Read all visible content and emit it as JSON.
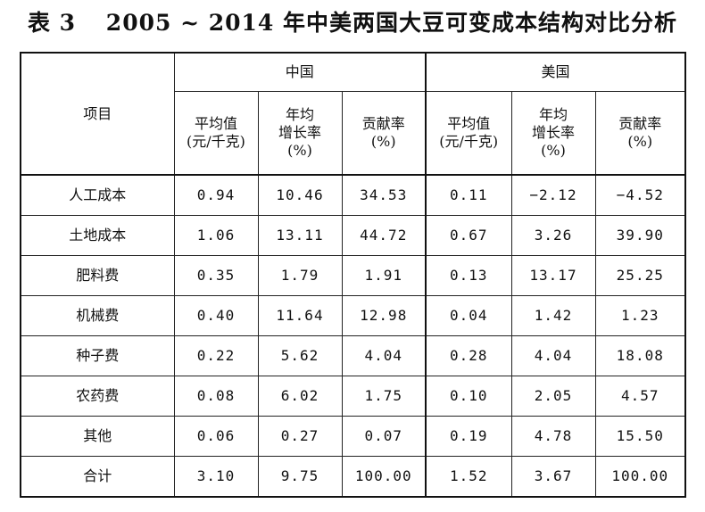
{
  "title": {
    "table_no": "表 3",
    "text": "2005 ~ 2014 年中美两国大豆可变成本结构对比分析"
  },
  "header": {
    "item": "项目",
    "groups": [
      "中国",
      "美国"
    ],
    "sub": [
      {
        "line1": "平均值",
        "line2": "(元/千克)",
        "line3": ""
      },
      {
        "line1": "年均",
        "line2": "增长率",
        "line3": "(%)"
      },
      {
        "line1": "贡献率",
        "line2": "(%)",
        "line3": ""
      }
    ]
  },
  "rows": [
    {
      "name": "人工成本",
      "cn": [
        "0.94",
        "10.46",
        "34.53"
      ],
      "us": [
        "0.11",
        "−2.12",
        "−4.52"
      ]
    },
    {
      "name": "土地成本",
      "cn": [
        "1.06",
        "13.11",
        "44.72"
      ],
      "us": [
        "0.67",
        "3.26",
        "39.90"
      ]
    },
    {
      "name": "肥料费",
      "cn": [
        "0.35",
        "1.79",
        "1.91"
      ],
      "us": [
        "0.13",
        "13.17",
        "25.25"
      ]
    },
    {
      "name": "机械费",
      "cn": [
        "0.40",
        "11.64",
        "12.98"
      ],
      "us": [
        "0.04",
        "1.42",
        "1.23"
      ]
    },
    {
      "name": "种子费",
      "cn": [
        "0.22",
        "5.62",
        "4.04"
      ],
      "us": [
        "0.28",
        "4.04",
        "18.08"
      ]
    },
    {
      "name": "农药费",
      "cn": [
        "0.08",
        "6.02",
        "1.75"
      ],
      "us": [
        "0.10",
        "2.05",
        "4.57"
      ]
    },
    {
      "name": "其他",
      "cn": [
        "0.06",
        "0.27",
        "0.07"
      ],
      "us": [
        "0.19",
        "4.78",
        "15.50"
      ]
    },
    {
      "name": "合计",
      "cn": [
        "3.10",
        "9.75",
        "100.00"
      ],
      "us": [
        "1.52",
        "3.67",
        "100.00"
      ]
    }
  ]
}
